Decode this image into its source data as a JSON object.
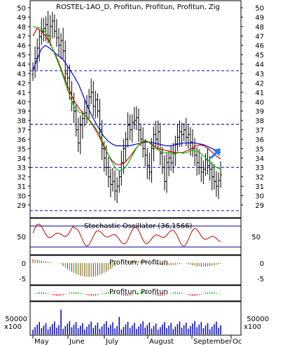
{
  "panels": {
    "price_title": "ROSTEL-1AO_D, Profitun, Profitun, Profitun, Zig",
    "stoch_title": "Stochastic Oscillator (36,1566)",
    "macd1_title": "Profitun, Profitun",
    "macd2_title": "Profitun, Profitun",
    "volume_unit": "x100"
  },
  "colors": {
    "candle": "#000000",
    "ma_fast": "#00c000",
    "ma_mid": "#e00000",
    "ma_slow": "#0000e0",
    "level": "#0000c0",
    "arrow": "#1e78ff",
    "hist_pos": "#00b000",
    "hist_neg": "#e00000",
    "volume": "#0000c0",
    "stoch_k": "#cc0000",
    "stoch_band": "#000080"
  },
  "icons": {
    "trend_arrow": "arrow-up-right-icon"
  },
  "chart_data": [
    {
      "type": "candlestick",
      "title": "ROSTEL-1AO_D, Profitun, Profitun, Profitun, Zig",
      "y_ticks": [
        29,
        30,
        31,
        32,
        33,
        34,
        35,
        36,
        37,
        38,
        39,
        40,
        41,
        42,
        43,
        44,
        45,
        46,
        47,
        48,
        49,
        50
      ],
      "ylim": [
        28,
        50.5
      ],
      "x_ticks": [
        "May",
        "June",
        "July",
        "August",
        "September",
        "Oc"
      ],
      "horizontal_levels": [
        43.3,
        37.6,
        33.0,
        28.4
      ],
      "close": [
        43.5,
        44.6,
        45.7,
        46.9,
        47.5,
        47.8,
        48.2,
        47.0,
        48.0,
        48.6,
        47.5,
        46.8,
        46.0,
        46.5,
        45.4,
        43.0,
        42.5,
        41.0,
        40.0,
        39.0,
        37.0,
        35.6,
        37.5,
        38.2,
        38.8,
        39.6,
        40.5,
        41.0,
        39.5,
        40.2,
        39.0,
        37.0,
        35.0,
        34.0,
        33.0,
        32.0,
        31.2,
        31.5,
        30.5,
        31.0,
        32.0,
        33.5,
        35.0,
        36.0,
        37.5,
        37.0,
        37.8,
        38.0,
        38.3,
        37.0,
        36.0,
        35.0,
        34.3,
        33.2,
        32.5,
        35.0,
        36.5,
        36.0,
        36.8,
        34.5,
        33.0,
        31.5,
        33.5,
        34.0,
        33.5,
        34.5,
        35.5,
        36.2,
        36.8,
        36.5,
        37.0,
        36.2,
        36.5,
        35.7,
        35.0,
        34.3,
        33.5,
        33.0,
        32.5,
        32.8,
        33.8,
        33.2,
        32.8,
        32.0,
        31.5,
        31.0,
        31.6,
        32.2
      ],
      "moving_averages": {
        "fast": [
          48.0,
          47.9,
          47.8,
          47.4,
          46.5,
          45.3,
          44.2,
          43.0,
          41.7,
          40.4,
          39.4,
          38.9,
          38.7,
          38.4,
          37.8,
          37.2,
          36.5,
          35.4,
          34.4,
          33.5,
          32.8,
          32.6,
          32.9,
          33.6,
          34.4,
          35.2,
          35.7,
          35.9,
          35.6,
          35.1,
          34.9,
          34.6,
          34.6,
          34.6,
          34.4,
          34.6,
          34.5,
          34.6,
          34.8,
          34.8,
          34.6,
          34.2,
          33.8,
          33.3,
          33.0,
          32.8
        ],
        "mid": [
          47.0,
          47.8,
          47.5,
          47.0,
          46.3,
          45.4,
          44.4,
          43.2,
          42.0,
          40.9,
          40.0,
          39.3,
          38.8,
          38.3,
          37.7,
          37.0,
          36.2,
          35.2,
          34.4,
          33.7,
          33.3,
          33.3,
          33.5,
          34.0,
          34.6,
          35.2,
          35.6,
          35.8,
          35.7,
          35.3,
          35.0,
          34.9,
          34.8,
          34.7,
          34.6,
          34.6,
          34.6,
          34.8,
          35.0,
          35.3,
          35.4,
          35.3,
          35.0,
          34.6,
          34.2,
          33.9
        ],
        "slow": [
          43.3,
          44.5,
          45.6,
          46.0,
          45.7,
          45.3,
          44.9,
          44.6,
          44.0,
          43.3,
          42.6,
          41.8,
          40.7,
          39.6,
          38.6,
          37.8,
          37.0,
          36.3,
          35.8,
          35.5,
          35.3,
          35.3,
          35.3,
          35.3,
          35.4,
          35.5,
          35.6,
          35.7,
          35.7,
          35.6,
          35.5,
          35.4,
          35.3,
          35.3,
          35.4,
          35.5,
          35.6,
          35.6,
          35.6,
          35.6,
          35.5,
          35.4,
          35.2,
          35.0,
          34.8,
          34.6
        ]
      }
    },
    {
      "type": "line",
      "title": "Stochastic Oscillator (36,1566)",
      "y_ticks": [
        50
      ],
      "ylim": [
        0,
        100
      ],
      "bands": [
        80,
        20
      ]
    },
    {
      "type": "bar",
      "title": "Profitun, Profitun",
      "y_ticks": [
        0,
        -5
      ],
      "ylim": [
        -6.8,
        2.2
      ]
    },
    {
      "type": "bar",
      "title": "Profitun, Profitun",
      "y_ticks": [],
      "ylim": [
        -1,
        1
      ]
    },
    {
      "type": "bar",
      "title": "",
      "y_ticks": [
        50000
      ],
      "ylim": [
        0,
        100000
      ],
      "unit": "x100"
    }
  ]
}
